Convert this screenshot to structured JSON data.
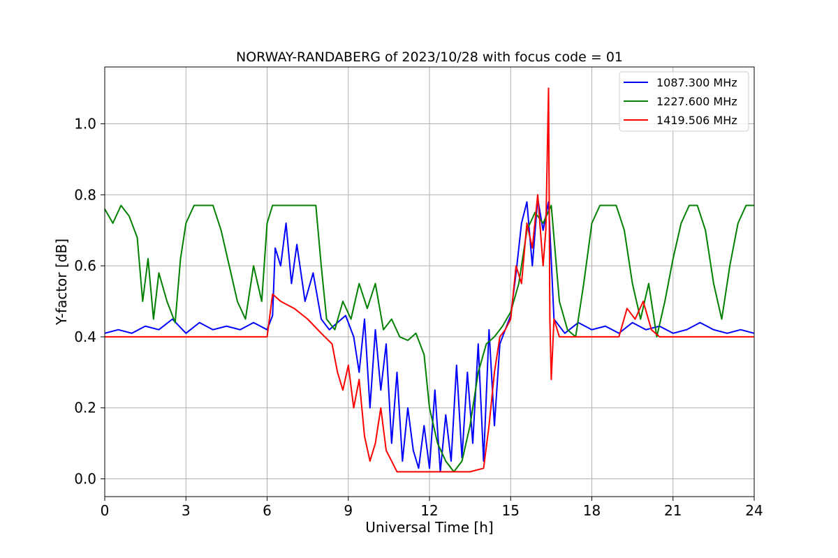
{
  "chart_data": {
    "type": "line",
    "title": "NORWAY-RANDABERG of 2023/10/28 with focus code = 01",
    "xlabel": "Universal Time [h]",
    "ylabel": "Y-factor [dB]",
    "xlim": [
      0,
      24
    ],
    "ylim": [
      -0.05,
      1.16
    ],
    "xticks": [
      0,
      3,
      6,
      9,
      12,
      15,
      18,
      21,
      24
    ],
    "xtick_labels": [
      "0",
      "3",
      "6",
      "9",
      "12",
      "15",
      "18",
      "21",
      "24"
    ],
    "yticks": [
      0.0,
      0.2,
      0.4,
      0.6,
      0.8,
      1.0
    ],
    "ytick_labels": [
      "0.0",
      "0.2",
      "0.4",
      "0.6",
      "0.8",
      "1.0"
    ],
    "grid": true,
    "legend_position": "top-right",
    "series": [
      {
        "name": "1087.300 MHz",
        "color": "#0000ff",
        "x": [
          0,
          0.5,
          1.0,
          1.5,
          2.0,
          2.5,
          3.0,
          3.5,
          4.0,
          4.5,
          5.0,
          5.5,
          6.0,
          6.2,
          6.3,
          6.5,
          6.7,
          6.9,
          7.1,
          7.4,
          7.7,
          8.0,
          8.3,
          8.6,
          8.9,
          9.2,
          9.4,
          9.6,
          9.8,
          10.0,
          10.2,
          10.4,
          10.6,
          10.8,
          11.0,
          11.2,
          11.4,
          11.6,
          11.8,
          12.0,
          12.2,
          12.4,
          12.6,
          12.8,
          13.0,
          13.2,
          13.4,
          13.6,
          13.8,
          14.0,
          14.2,
          14.4,
          14.6,
          14.8,
          15.0,
          15.2,
          15.4,
          15.6,
          15.8,
          16.0,
          16.2,
          16.4,
          16.6,
          17.0,
          17.5,
          18.0,
          18.5,
          19.0,
          19.5,
          20.0,
          20.5,
          21.0,
          21.5,
          22.0,
          22.5,
          23.0,
          23.5,
          24.0
        ],
        "y": [
          0.41,
          0.42,
          0.41,
          0.43,
          0.42,
          0.45,
          0.41,
          0.44,
          0.42,
          0.43,
          0.42,
          0.44,
          0.42,
          0.46,
          0.65,
          0.6,
          0.72,
          0.55,
          0.66,
          0.5,
          0.58,
          0.45,
          0.42,
          0.44,
          0.46,
          0.4,
          0.3,
          0.45,
          0.2,
          0.42,
          0.25,
          0.38,
          0.1,
          0.3,
          0.05,
          0.2,
          0.08,
          0.03,
          0.15,
          0.03,
          0.25,
          0.02,
          0.18,
          0.05,
          0.32,
          0.06,
          0.3,
          0.1,
          0.38,
          0.05,
          0.42,
          0.15,
          0.38,
          0.42,
          0.46,
          0.58,
          0.72,
          0.78,
          0.6,
          0.79,
          0.7,
          0.78,
          0.45,
          0.41,
          0.44,
          0.42,
          0.43,
          0.41,
          0.44,
          0.42,
          0.43,
          0.41,
          0.42,
          0.44,
          0.42,
          0.41,
          0.42,
          0.41
        ]
      },
      {
        "name": "1227.600 MHz",
        "color": "#008000",
        "x": [
          0,
          0.3,
          0.6,
          0.9,
          1.2,
          1.4,
          1.6,
          1.8,
          2.0,
          2.3,
          2.6,
          2.8,
          3.0,
          3.3,
          3.6,
          4.0,
          4.3,
          4.6,
          4.9,
          5.2,
          5.5,
          5.8,
          6.0,
          6.2,
          6.6,
          7.0,
          7.4,
          7.8,
          8.0,
          8.2,
          8.5,
          8.8,
          9.1,
          9.4,
          9.7,
          10.0,
          10.3,
          10.6,
          10.9,
          11.2,
          11.5,
          11.8,
          12.0,
          12.3,
          12.6,
          12.9,
          13.2,
          13.5,
          13.8,
          14.1,
          14.4,
          14.7,
          15.0,
          15.3,
          15.6,
          15.9,
          16.2,
          16.5,
          16.8,
          17.1,
          17.4,
          17.7,
          18.0,
          18.3,
          18.6,
          18.9,
          19.2,
          19.5,
          19.8,
          20.1,
          20.4,
          20.7,
          21.0,
          21.3,
          21.6,
          21.9,
          22.2,
          22.5,
          22.8,
          23.1,
          23.4,
          23.7,
          24.0
        ],
        "y": [
          0.76,
          0.72,
          0.77,
          0.74,
          0.68,
          0.5,
          0.62,
          0.45,
          0.58,
          0.5,
          0.44,
          0.62,
          0.72,
          0.77,
          0.77,
          0.77,
          0.7,
          0.6,
          0.5,
          0.45,
          0.6,
          0.5,
          0.72,
          0.77,
          0.77,
          0.77,
          0.77,
          0.77,
          0.6,
          0.45,
          0.42,
          0.5,
          0.45,
          0.55,
          0.48,
          0.55,
          0.42,
          0.45,
          0.4,
          0.39,
          0.41,
          0.35,
          0.2,
          0.1,
          0.05,
          0.02,
          0.05,
          0.15,
          0.3,
          0.38,
          0.4,
          0.43,
          0.47,
          0.55,
          0.7,
          0.75,
          0.72,
          0.77,
          0.5,
          0.42,
          0.4,
          0.55,
          0.72,
          0.77,
          0.77,
          0.77,
          0.7,
          0.55,
          0.45,
          0.55,
          0.4,
          0.5,
          0.62,
          0.72,
          0.77,
          0.77,
          0.7,
          0.55,
          0.45,
          0.6,
          0.72,
          0.77,
          0.77
        ]
      },
      {
        "name": "1419.506 MHz",
        "color": "#ff0000",
        "x": [
          0,
          1,
          2,
          3,
          4,
          5,
          6.0,
          6.2,
          6.5,
          7.0,
          7.5,
          8.0,
          8.4,
          8.6,
          8.8,
          9.0,
          9.2,
          9.4,
          9.6,
          9.8,
          10.0,
          10.2,
          10.4,
          10.6,
          10.8,
          11.0,
          11.5,
          12.0,
          12.5,
          13.0,
          13.5,
          14.0,
          14.2,
          14.4,
          14.6,
          14.8,
          15.0,
          15.2,
          15.4,
          15.6,
          15.8,
          16.0,
          16.2,
          16.3,
          16.4,
          16.45,
          16.5,
          16.6,
          16.8,
          17.0,
          17.5,
          18.0,
          18.5,
          19.0,
          19.3,
          19.6,
          19.9,
          20.2,
          20.5,
          21.0,
          21.5,
          22.0,
          22.5,
          23.0,
          24.0
        ],
        "y": [
          0.4,
          0.4,
          0.4,
          0.4,
          0.4,
          0.4,
          0.4,
          0.52,
          0.5,
          0.48,
          0.45,
          0.41,
          0.38,
          0.3,
          0.25,
          0.32,
          0.2,
          0.28,
          0.12,
          0.05,
          0.1,
          0.2,
          0.08,
          0.05,
          0.02,
          0.02,
          0.02,
          0.02,
          0.02,
          0.02,
          0.02,
          0.03,
          0.15,
          0.3,
          0.4,
          0.42,
          0.45,
          0.6,
          0.55,
          0.72,
          0.65,
          0.8,
          0.6,
          0.7,
          1.1,
          0.45,
          0.28,
          0.45,
          0.4,
          0.4,
          0.4,
          0.4,
          0.4,
          0.4,
          0.48,
          0.45,
          0.5,
          0.42,
          0.4,
          0.4,
          0.4,
          0.4,
          0.4,
          0.4,
          0.4
        ]
      }
    ]
  }
}
